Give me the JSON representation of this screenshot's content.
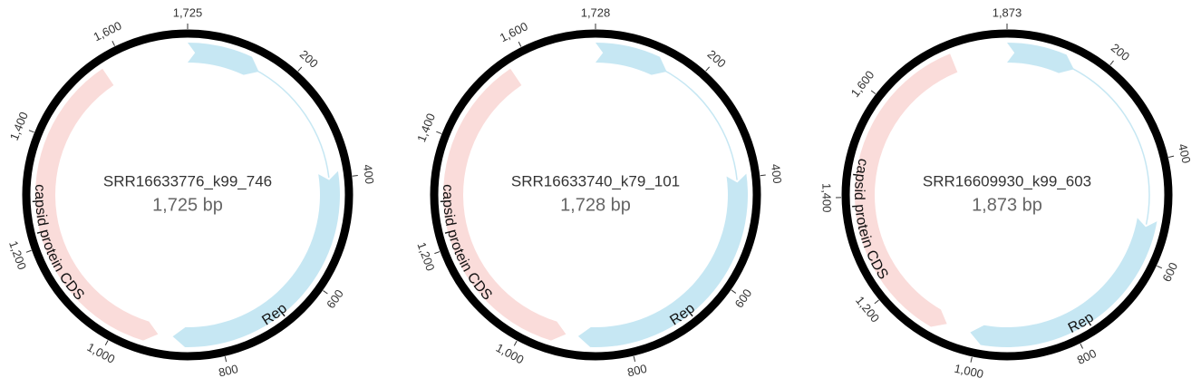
{
  "maps": [
    {
      "name": "SRR16633776_k99_746",
      "length": {
        "value": 1725,
        "label": "1,725 bp"
      },
      "ticks": [
        {
          "value": 1725,
          "label": "1,725"
        },
        200,
        400,
        600,
        800,
        {
          "value": 1000,
          "label": "1,000"
        },
        {
          "value": 1200,
          "label": "1,200"
        },
        {
          "value": 1400,
          "label": "1,400"
        },
        {
          "value": 1600,
          "label": "1,600"
        }
      ],
      "features": [
        {
          "label": "Rep"
        },
        {
          "label": "capsid protein CDS"
        }
      ]
    },
    {
      "name": "SRR16633740_k79_101",
      "length": {
        "value": 1728,
        "label": "1,728 bp"
      },
      "ticks": [
        {
          "value": 1728,
          "label": "1,728"
        },
        200,
        400,
        600,
        800,
        {
          "value": 1000,
          "label": "1,000"
        },
        {
          "value": 1200,
          "label": "1,200"
        },
        {
          "value": 1400,
          "label": "1,400"
        },
        {
          "value": 1600,
          "label": "1,600"
        }
      ],
      "features": [
        {
          "label": "Rep"
        },
        {
          "label": "capsid protein CDS"
        }
      ]
    },
    {
      "name": "SRR16609930_k99_603",
      "length": {
        "value": 1873,
        "label": "1,873 bp"
      },
      "ticks": [
        {
          "value": 1873,
          "label": "1,873"
        },
        200,
        400,
        600,
        800,
        {
          "value": 1000,
          "label": "1,000"
        },
        {
          "value": 1200,
          "label": "1,200"
        },
        {
          "value": 1400,
          "label": "1,400"
        },
        {
          "value": 1600,
          "label": "1,600"
        }
      ],
      "features": [
        {
          "label": "Rep"
        },
        {
          "label": "capsid protein CDS"
        }
      ]
    }
  ]
}
